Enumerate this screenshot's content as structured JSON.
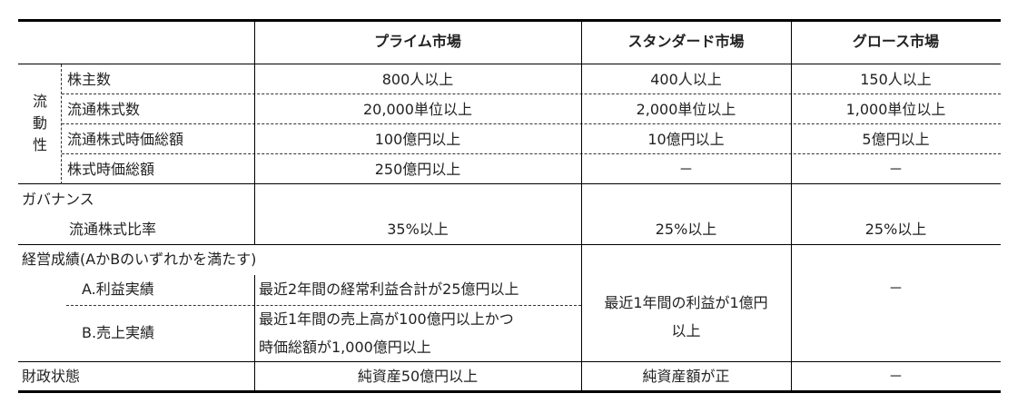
{
  "header": {
    "prime": "プライム市場",
    "standard": "スタンダード市場",
    "growth": "グロース市場"
  },
  "liquidity": {
    "group_label": [
      "流",
      "動",
      "性"
    ],
    "rows": [
      {
        "label": "株主数",
        "prime": "800人以上",
        "standard": "400人以上",
        "growth": "150人以上"
      },
      {
        "label": "流通株式数",
        "prime": "20,000単位以上",
        "standard": "2,000単位以上",
        "growth": "1,000単位以上"
      },
      {
        "label": "流通株式時価総額",
        "prime": "100億円以上",
        "standard": "10億円以上",
        "growth": "5億円以上"
      },
      {
        "label": "株式時価総額",
        "prime": "250億円以上",
        "standard": "－",
        "growth": "－"
      }
    ]
  },
  "governance": {
    "label": "ガバナンス",
    "sub_label": "流通株式比率",
    "prime": "35%以上",
    "standard": "25%以上",
    "growth": "25%以上"
  },
  "performance": {
    "label": "経営成績(AかBのいずれかを満たす)",
    "a_label": "A.利益実績",
    "a_prime": "最近2年間の経常利益合計が25億円以上",
    "b_label": "B.売上実績",
    "b_prime_line1": "最近1年間の売上高が100億円以上かつ",
    "b_prime_line2": "時価総額が1,000億円以上",
    "standard_line1": "最近1年間の利益が1億円",
    "standard_line2": "以上",
    "growth": "－"
  },
  "financial": {
    "label": "財政状態",
    "prime": "純資産50億円以上",
    "standard": "純資産額が正",
    "growth": "－"
  }
}
